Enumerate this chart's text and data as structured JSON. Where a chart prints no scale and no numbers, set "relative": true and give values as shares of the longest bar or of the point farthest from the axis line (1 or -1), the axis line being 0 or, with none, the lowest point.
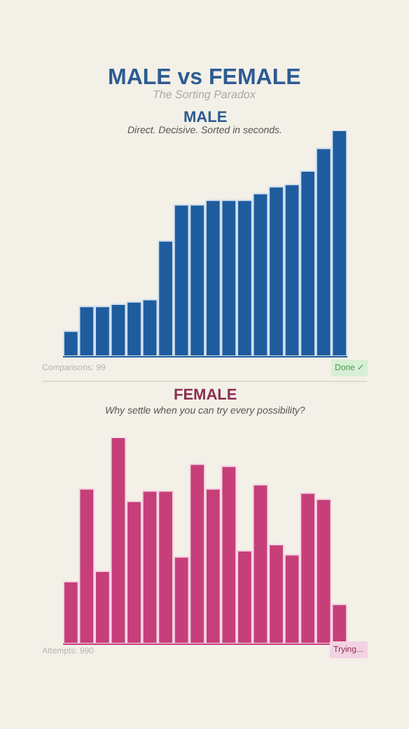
{
  "chart_data": [
    {
      "type": "other",
      "title": "MALE vs FEMALE",
      "subtitle": "The Sorting Paradox"
    },
    {
      "type": "bar",
      "title": "MALE",
      "subtitle": "Direct. Decisive. Sorted in seconds.",
      "relative": true,
      "color": "#1f5c9e",
      "categories": [
        null,
        null,
        null,
        null,
        null,
        null,
        null,
        null,
        null,
        null,
        null,
        null,
        null,
        null,
        null,
        null,
        null,
        null
      ],
      "values": [
        0.11,
        0.22,
        0.22,
        0.23,
        0.24,
        0.25,
        0.51,
        0.67,
        0.67,
        0.69,
        0.69,
        0.69,
        0.72,
        0.75,
        0.76,
        0.82,
        0.92,
        1
      ],
      "annotations": [
        "Comparisons: 99",
        "Done ✓"
      ]
    },
    {
      "type": "bar",
      "title": "FEMALE",
      "subtitle": "Why settle when you can try every possibility?",
      "relative": true,
      "color": "#c63f78",
      "categories": [
        null,
        null,
        null,
        null,
        null,
        null,
        null,
        null,
        null,
        null,
        null,
        null,
        null,
        null,
        null,
        null,
        null,
        null
      ],
      "values": [
        0.3,
        0.75,
        0.35,
        1,
        0.69,
        0.74,
        0.74,
        0.42,
        0.87,
        0.75,
        0.86,
        0.45,
        0.77,
        0.48,
        0.43,
        0.73,
        0.7,
        0.19
      ],
      "annotations": [
        "Attempts: 990",
        "Trying..."
      ]
    }
  ]
}
